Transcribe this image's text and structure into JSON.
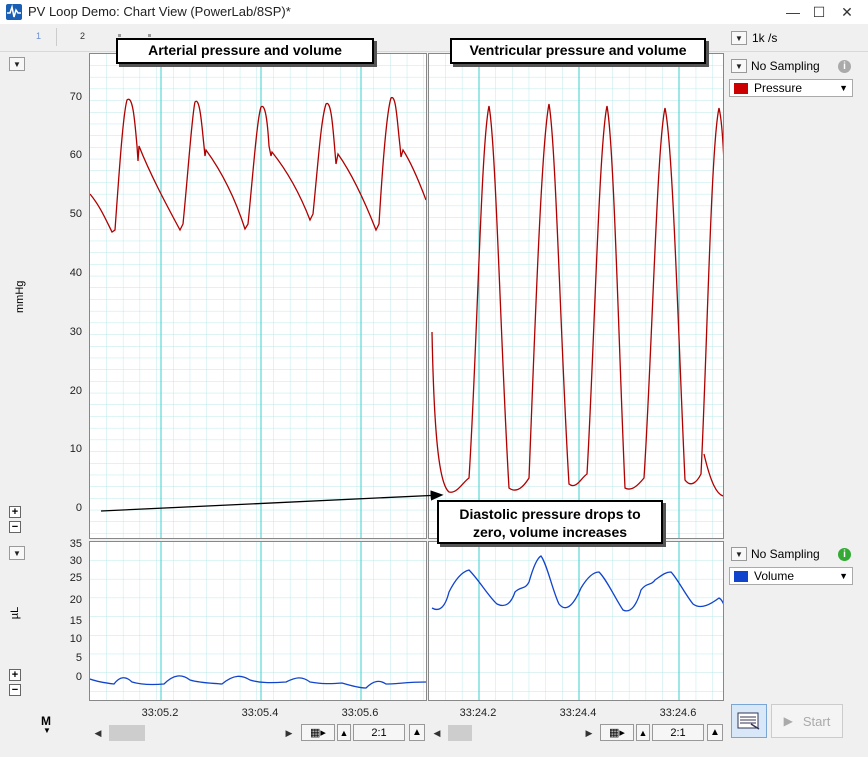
{
  "window": {
    "title": "PV Loop Demo: Chart View (PowerLab/8SP)*"
  },
  "toolbar": {
    "marker_1": "1",
    "marker_2": "2",
    "rate": "1k /s"
  },
  "annotations": {
    "left_title": "Arterial pressure and volume",
    "right_title": "Ventricular pressure and volume",
    "callout_line1": "Diastolic pressure drops to",
    "callout_line2": "zero, volume increases"
  },
  "channels": [
    {
      "sampling": "No Sampling",
      "name": "Pressure",
      "unit": "mmHg",
      "color": "#cc0000",
      "info_color": "#aaaaaa",
      "y_ticks": [
        "70",
        "60",
        "50",
        "40",
        "30",
        "20",
        "10",
        "0"
      ]
    },
    {
      "sampling": "No Sampling",
      "name": "Volume",
      "unit": "µL",
      "color": "#1144cc",
      "info_color": "#33aa33",
      "y_ticks": [
        "35",
        "30",
        "25",
        "20",
        "15",
        "10",
        "5",
        "0"
      ]
    }
  ],
  "time_axis": {
    "left": [
      "33:05.2",
      "33:05.4",
      "33:05.6"
    ],
    "right": [
      "33:24.2",
      "33:24.4",
      "33:24.6"
    ]
  },
  "zoom": {
    "left": "2:1",
    "right": "2:1"
  },
  "bottom": {
    "m_label": "M",
    "start_label": "Start"
  }
}
